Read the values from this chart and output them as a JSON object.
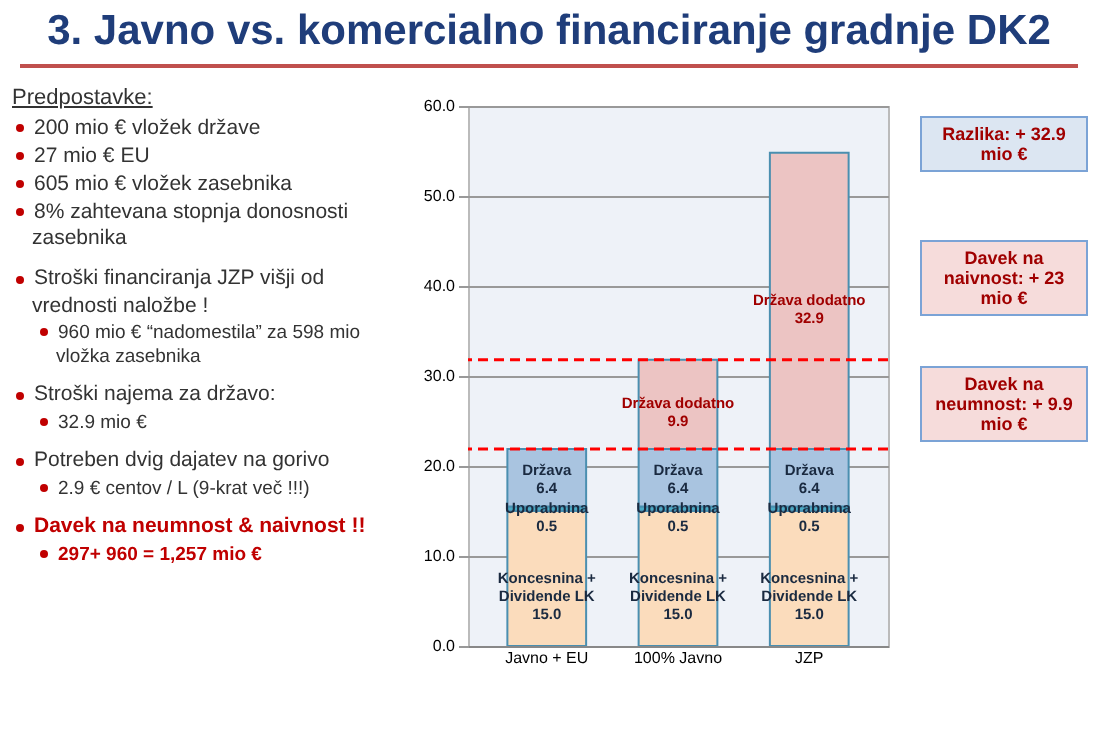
{
  "chart_data": {
    "type": "bar",
    "stacked": true,
    "title": "3. Javno vs. komercialno financiranje gradnje  DK2",
    "categories": [
      "Javno + EU",
      "100% Javno",
      "JZP"
    ],
    "series": [
      {
        "name": "Koncesnina + Dividende LK",
        "color": "#fbdcbc",
        "values": [
          15.0,
          15.0,
          15.0
        ],
        "value_labels": [
          "15.0",
          "15.0",
          "15.0"
        ]
      },
      {
        "name": "Uporabnina",
        "color": "#4bacc6",
        "values": [
          0.5,
          0.5,
          0.5
        ],
        "value_labels": [
          "0.5",
          "0.5",
          "0.5"
        ]
      },
      {
        "name": "Država",
        "color": "#a9c4e0",
        "values": [
          6.4,
          6.4,
          6.4
        ],
        "value_labels": [
          "6.4",
          "6.4",
          "6.4"
        ]
      },
      {
        "name": "Država dodatno",
        "color": "#ecc4c3",
        "values": [
          null,
          9.9,
          32.9
        ],
        "value_labels": [
          null,
          "9.9",
          "32.9"
        ]
      }
    ],
    "ylim": [
      0,
      60
    ],
    "yticks": [
      {
        "value": 0,
        "label": "0.0"
      },
      {
        "value": 10,
        "label": "10.0"
      },
      {
        "value": 20,
        "label": "20.0"
      },
      {
        "value": 30,
        "label": "30.0"
      },
      {
        "value": 40,
        "label": "40.0"
      },
      {
        "value": 50,
        "label": "50.0"
      },
      {
        "value": 60,
        "label": "60.0"
      }
    ],
    "grid": "y",
    "legend": false,
    "ref_lines": [
      {
        "axis": "y",
        "value": 21.9,
        "color": "#ff0000",
        "line_style": "dashed"
      },
      {
        "axis": "y",
        "value": 31.8,
        "color": "#ff0000",
        "line_style": "dashed"
      }
    ],
    "annotations": [
      "Predpostavke:",
      "200 mio € vložek države",
      "27 mio € EU",
      "605 mio € vložek zasebnika",
      "8% zahtevana stopnja donosnosti zasebnika",
      "Stroški financiranja JZP višji od vrednosti naložbe !",
      "960 mio € “nadomestila” za 598 mio vložka zasebnika",
      "Stroški najema za državo:",
      "32.9 mio €",
      "Potreben dvig dajatev na gorivo",
      "2.9 € centov / L (9-krat več !!!)",
      "Davek na neumnost & naivnost !!",
      "297+ 960 = 1,257 mio €",
      "Razlika: + 32.9 mio €",
      "Davek na naivnost: + 23 mio €",
      "Davek na neumnost: + 9.9 mio €"
    ]
  }
}
